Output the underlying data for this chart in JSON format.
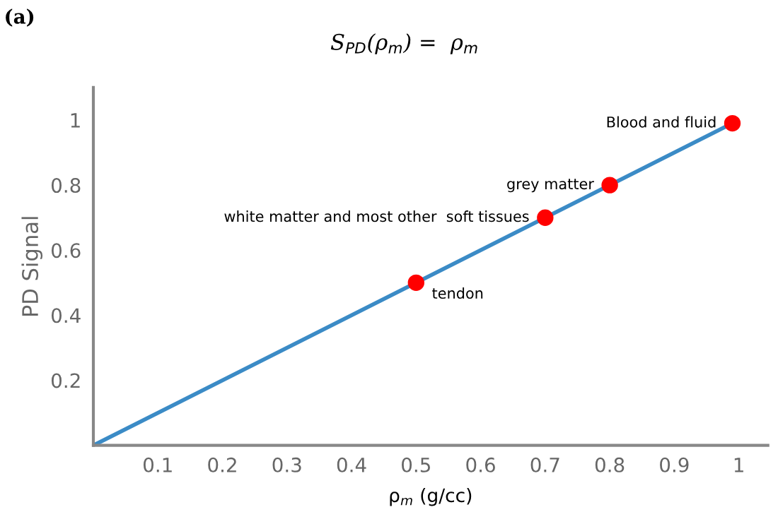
{
  "chart_data": {
    "type": "line",
    "title": "S$_{PD}$(ρ$_{m}$) =  ρ$_{m}$",
    "xlabel": "ρ$_{m}$ (g/cc)",
    "ylabel": "PD Signal",
    "series": [
      {
        "color": "#3b8bc6",
        "x": [
          0,
          0.99
        ],
        "values": [
          0,
          0.99
        ]
      },
      {
        "type": "scatter",
        "color": "#ff0000",
        "x": [
          0.5,
          0.7,
          0.8,
          0.99
        ],
        "values": [
          0.5,
          0.7,
          0.8,
          0.99
        ],
        "marker": "circle"
      }
    ],
    "annotations": [
      "(a)",
      {
        "text": "tendon",
        "x": 0.5,
        "y": 0.5
      },
      {
        "text": "white matter and most other  soft tissues",
        "x": 0.7,
        "y": 0.7
      },
      {
        "text": "grey matter",
        "x": 0.8,
        "y": 0.8
      },
      {
        "text": "Blood and fluid",
        "x": 0.99,
        "y": 0.99
      }
    ],
    "xlim": [
      0,
      1.045
    ],
    "ylim": [
      0,
      1.1
    ],
    "xticks": [
      0.1,
      0.2,
      0.3,
      0.4,
      0.5,
      0.6,
      0.7,
      0.8,
      0.9,
      1
    ],
    "yticks": [
      0.2,
      0.4,
      0.6,
      0.8,
      1
    ],
    "grid": false,
    "legend": false
  }
}
